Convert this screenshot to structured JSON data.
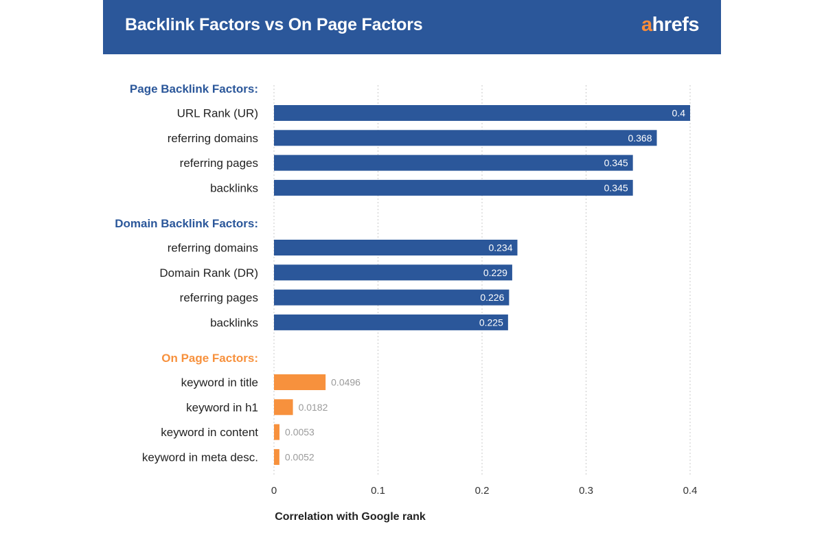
{
  "header": {
    "title": "Backlink Factors vs On Page Factors",
    "logo_first": "a",
    "logo_rest": "hrefs",
    "bg_color": "#2b579a",
    "logo_accent": "#f98d3a"
  },
  "chart_data": {
    "type": "bar",
    "orientation": "horizontal",
    "title": "Backlink Factors vs On Page Factors",
    "xlabel": "Correlation with Google rank",
    "ylabel": "",
    "xlim": [
      0,
      0.4
    ],
    "xticks": [
      0,
      0.1,
      0.2,
      0.3,
      0.4
    ],
    "xtick_labels": [
      "0",
      "0.1",
      "0.2",
      "0.3",
      "0.4"
    ],
    "grid": "vertical dotted",
    "groups": [
      {
        "name": "Page Backlink Factors:",
        "color": "#2b579a",
        "label_inside": true,
        "bars": [
          {
            "label": "URL Rank (UR)",
            "value": 0.4,
            "value_label": "0.4"
          },
          {
            "label": "referring domains",
            "value": 0.368,
            "value_label": "0.368"
          },
          {
            "label": "referring pages",
            "value": 0.345,
            "value_label": "0.345"
          },
          {
            "label": "backlinks",
            "value": 0.345,
            "value_label": "0.345"
          }
        ]
      },
      {
        "name": "Domain Backlink Factors:",
        "color": "#2b579a",
        "label_inside": true,
        "bars": [
          {
            "label": "referring domains",
            "value": 0.234,
            "value_label": "0.234"
          },
          {
            "label": "Domain Rank (DR)",
            "value": 0.229,
            "value_label": "0.229"
          },
          {
            "label": "referring pages",
            "value": 0.226,
            "value_label": "0.226"
          },
          {
            "label": "backlinks",
            "value": 0.225,
            "value_label": "0.225"
          }
        ]
      },
      {
        "name": "On Page Factors:",
        "color": "#f7913d",
        "label_inside": false,
        "bars": [
          {
            "label": "keyword in title",
            "value": 0.0496,
            "value_label": "0.0496"
          },
          {
            "label": "keyword in h1",
            "value": 0.0182,
            "value_label": "0.0182"
          },
          {
            "label": "keyword in content",
            "value": 0.0053,
            "value_label": "0.0053"
          },
          {
            "label": "keyword in meta desc.",
            "value": 0.0052,
            "value_label": "0.0052"
          }
        ]
      }
    ]
  }
}
